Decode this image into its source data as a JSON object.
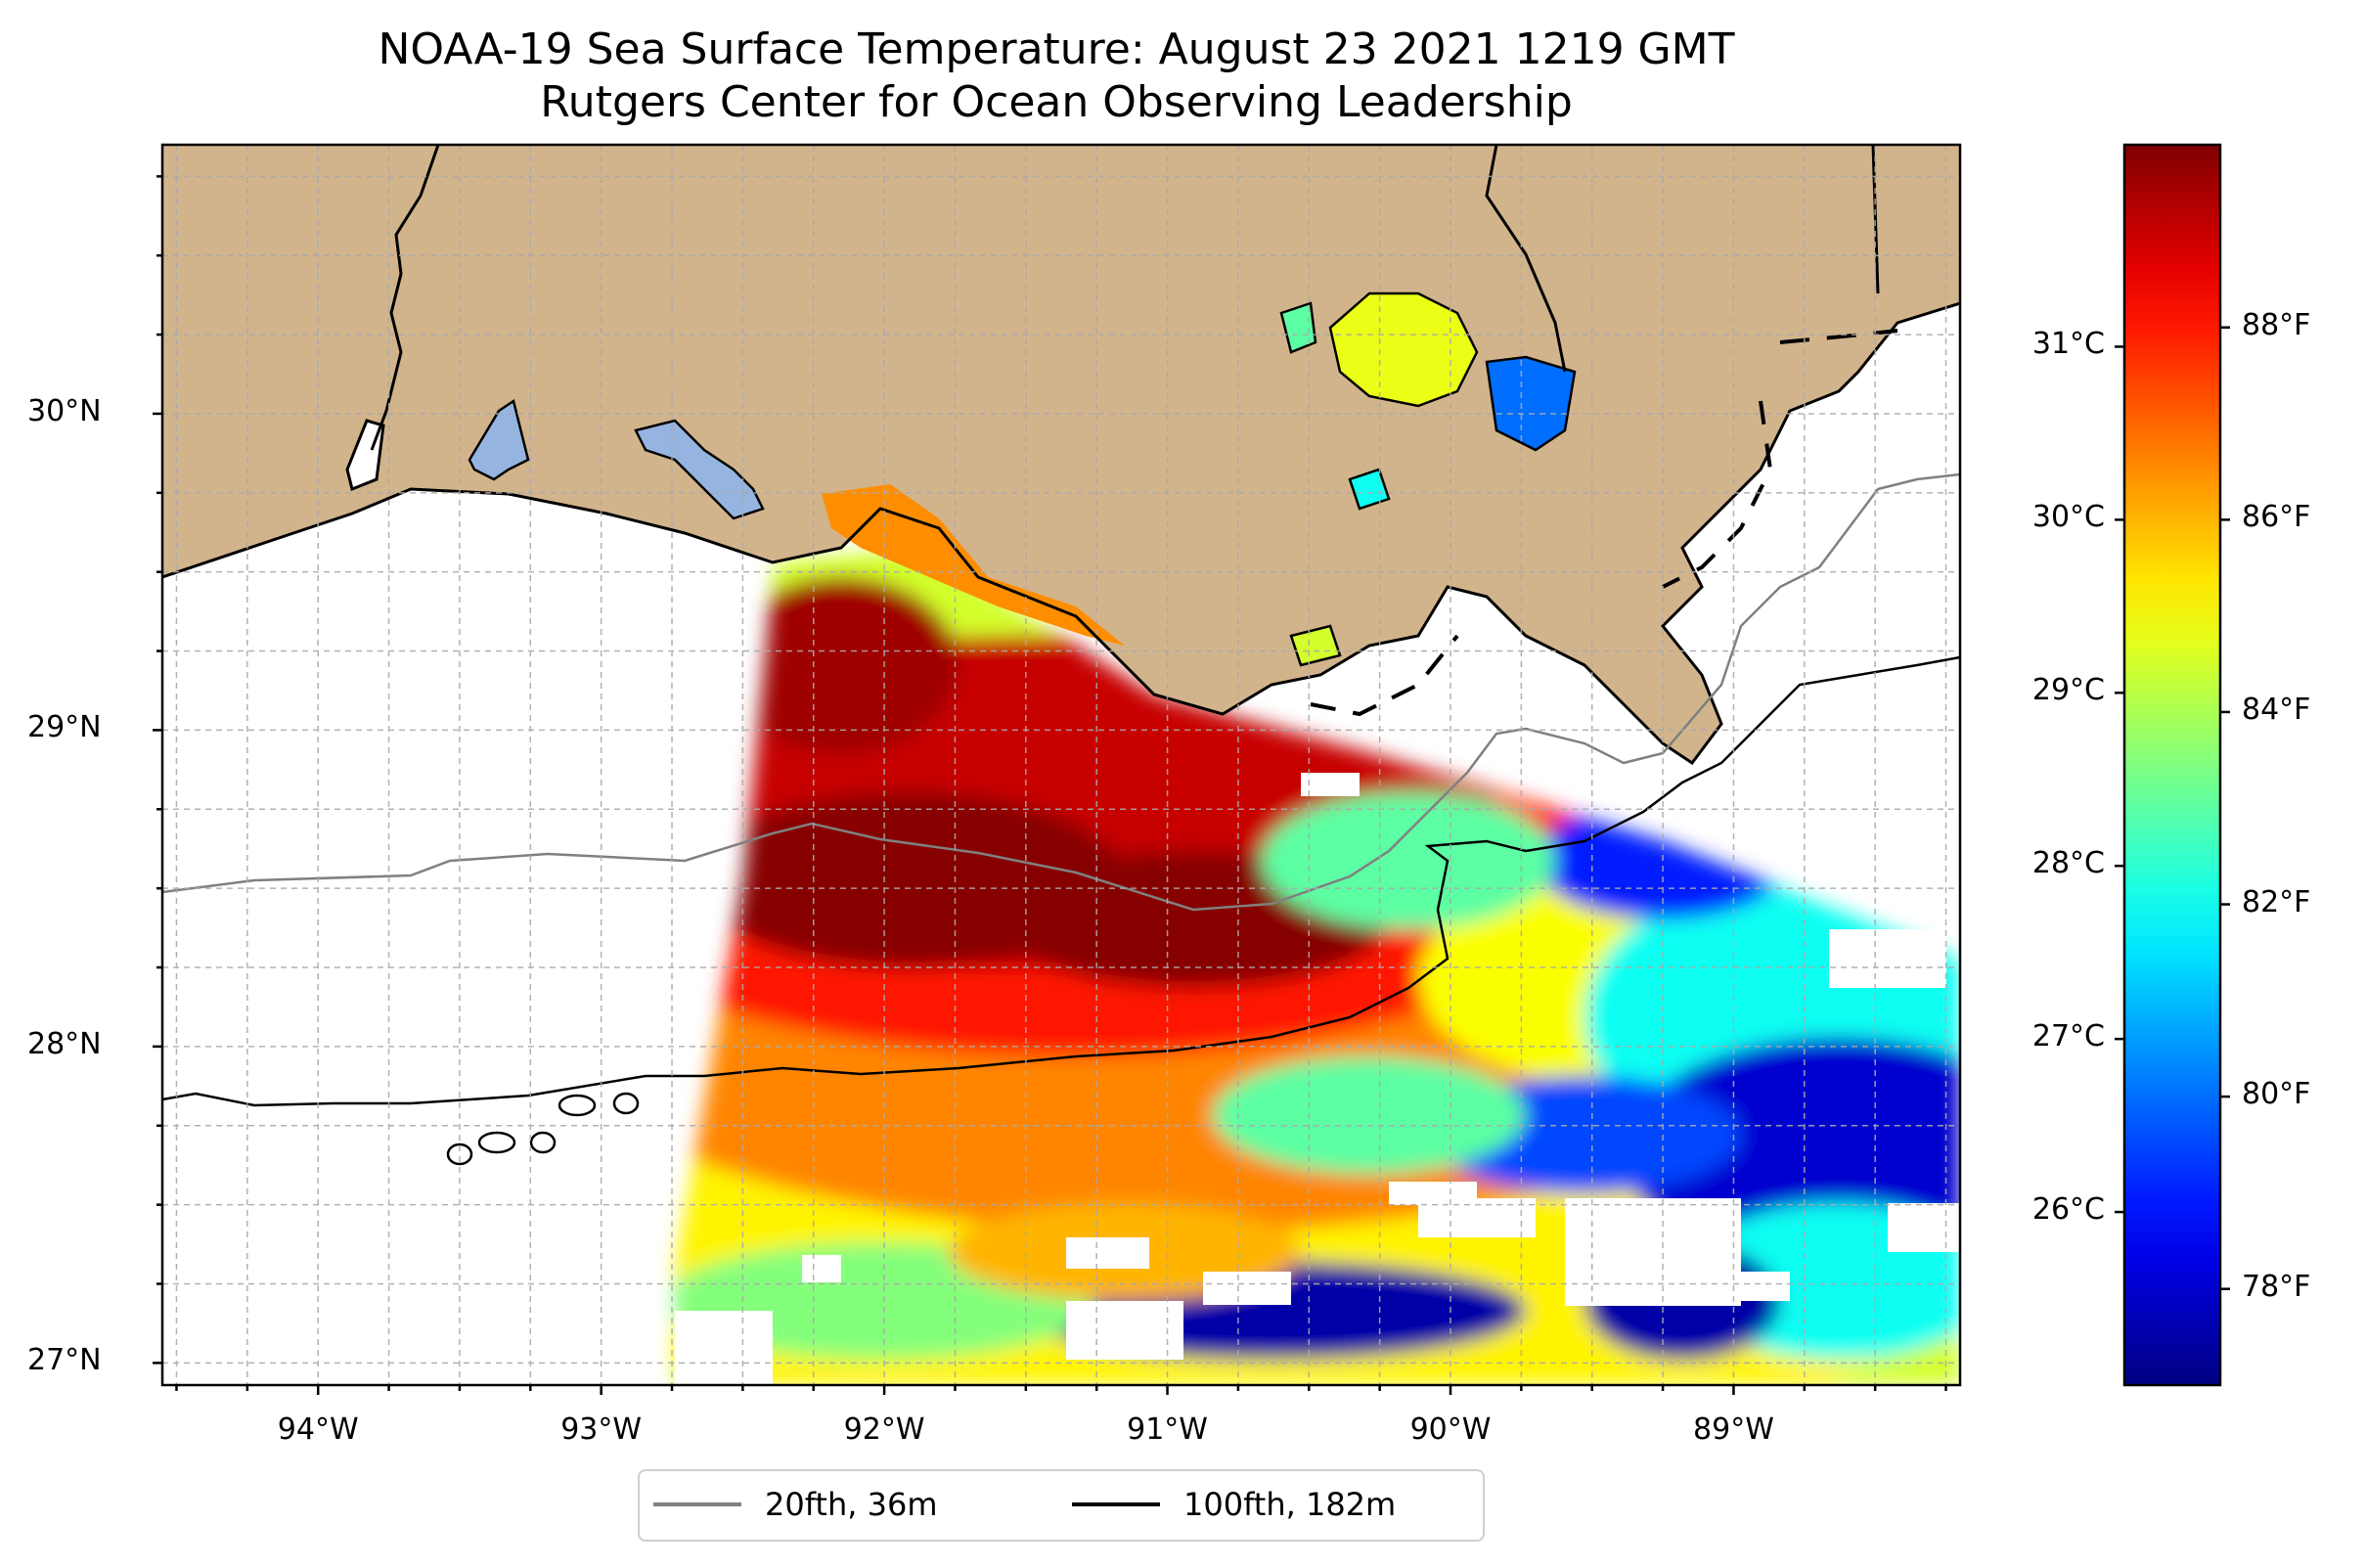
{
  "title": {
    "line1": "NOAA-19 Sea Surface Temperature: August 23 2021 1219 GMT",
    "line2": "Rutgers Center for Ocean Observing Leadership"
  },
  "map": {
    "extent": {
      "lon_min": -94.55,
      "lon_max": -88.2,
      "lat_min": 26.93,
      "lat_max": 30.85
    },
    "land_color": "#d2b48c",
    "lake_color": "#95b4e0",
    "gridlines": "dashed"
  },
  "axes": {
    "x_ticks": [
      {
        "lon": -94,
        "label": "94°W"
      },
      {
        "lon": -93,
        "label": "93°W"
      },
      {
        "lon": -92,
        "label": "92°W"
      },
      {
        "lon": -91,
        "label": "91°W"
      },
      {
        "lon": -90,
        "label": "90°W"
      },
      {
        "lon": -89,
        "label": "89°W"
      }
    ],
    "y_ticks": [
      {
        "lat": 30,
        "label": "30°N"
      },
      {
        "lat": 29,
        "label": "29°N"
      },
      {
        "lat": 28,
        "label": "28°N"
      },
      {
        "lat": 27,
        "label": "27°N"
      }
    ]
  },
  "colorbar": {
    "colormap": "jet",
    "range_f": [
      77.0,
      89.9
    ],
    "celsius_ticks": [
      {
        "c": 26,
        "label": "26°C"
      },
      {
        "c": 27,
        "label": "27°C"
      },
      {
        "c": 28,
        "label": "28°C"
      },
      {
        "c": 29,
        "label": "29°C"
      },
      {
        "c": 30,
        "label": "30°C"
      },
      {
        "c": 31,
        "label": "31°C"
      }
    ],
    "fahrenheit_ticks": [
      {
        "f": 78,
        "label": "78°F"
      },
      {
        "f": 80,
        "label": "80°F"
      },
      {
        "f": 82,
        "label": "82°F"
      },
      {
        "f": 84,
        "label": "84°F"
      },
      {
        "f": 86,
        "label": "86°F"
      },
      {
        "f": 88,
        "label": "88°F"
      }
    ]
  },
  "legend": {
    "items": [
      {
        "label": "20fth, 36m",
        "color": "#808080"
      },
      {
        "label": "100fth, 182m",
        "color": "#000000"
      }
    ]
  }
}
